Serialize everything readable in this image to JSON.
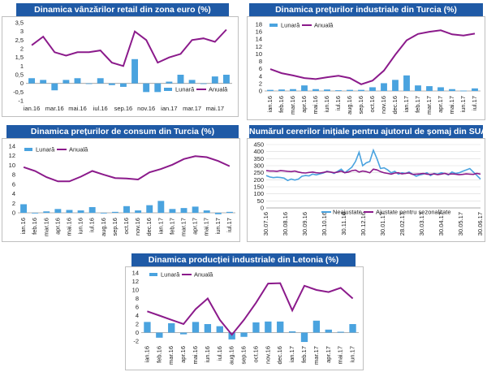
{
  "colors": {
    "bar": "#4aa3df",
    "line": "#8b1a8b",
    "title_bg": "#1f5aa6",
    "grid": "#d9d9d9"
  },
  "chart_data": [
    {
      "type": "bar+line",
      "title": "Dinamica vânzărilor retail din zona euro (%)",
      "ylim": [
        -1,
        3.5
      ],
      "yticks": [
        "3,5",
        "3",
        "2,5",
        "2",
        "1,5",
        "1",
        "0,5",
        "0",
        "-0,5",
        "-1"
      ],
      "tick_values": [
        3.5,
        3,
        2.5,
        2,
        1.5,
        1,
        0.5,
        0,
        -0.5,
        -1
      ],
      "categories": [
        "ian.16",
        "feb.16",
        "mar.16",
        "apr.16",
        "mai.16",
        "iun.16",
        "iul.16",
        "aug.16",
        "sep.16",
        "oct.16",
        "nov.16",
        "dec.16",
        "ian.17",
        "feb.17",
        "mar.17",
        "apr.17",
        "mai.17",
        "iun.17"
      ],
      "xlabels": [
        "ian.16",
        "mar.16",
        "mai.16",
        "iul.16",
        "sep.16",
        "nov.16",
        "ian.17",
        "mar.17",
        "mai.17"
      ],
      "xlabel_index": [
        0,
        2,
        4,
        6,
        8,
        10,
        12,
        14,
        16
      ],
      "rotated": false,
      "legend": [
        "Lunară",
        "Anuală"
      ],
      "series": [
        {
          "name": "Lunară",
          "kind": "bar",
          "values": [
            0.3,
            0.2,
            -0.4,
            0.2,
            0.3,
            0,
            0.3,
            -0.1,
            -0.2,
            1.4,
            -0.5,
            -0.5,
            0.1,
            0.5,
            0.2,
            0,
            0.4,
            0.5
          ]
        },
        {
          "name": "Anuală",
          "kind": "line",
          "values": [
            2.2,
            2.7,
            1.8,
            1.6,
            1.8,
            1.8,
            1.9,
            1.2,
            1,
            3,
            2.5,
            1.2,
            1.5,
            1.7,
            2.5,
            2.6,
            2.4,
            3.1
          ]
        }
      ]
    },
    {
      "type": "bar+line",
      "title": "Dinamica prețurilor industriale din Turcia (%)",
      "ylim": [
        0,
        18
      ],
      "yticks": [
        "18",
        "16",
        "14",
        "12",
        "10",
        "8",
        "6",
        "4",
        "2",
        "0"
      ],
      "tick_values": [
        18,
        16,
        14,
        12,
        10,
        8,
        6,
        4,
        2,
        0
      ],
      "categories": [
        "ian.16",
        "feb.16",
        "mar.16",
        "apr.16",
        "mai.16",
        "iun.16",
        "iul.16",
        "aug.16",
        "sep.16",
        "oct.16",
        "nov.16",
        "dec.16",
        "ian.17",
        "feb.17",
        "mar.17",
        "apr.17",
        "mai.17",
        "iun.17",
        "iul.17"
      ],
      "xlabels": [
        "ian.16",
        "feb.16",
        "mar.16",
        "apr.16",
        "mai.16",
        "iun.16",
        "iul.16",
        "aug.16",
        "sep.16",
        "oct.16",
        "nov.16",
        "dec.16",
        "ian.17",
        "feb.17",
        "mar.17",
        "apr.17",
        "mai.17",
        "iun.17",
        "iul.17"
      ],
      "xlabel_index": [
        0,
        1,
        2,
        3,
        4,
        5,
        6,
        7,
        8,
        9,
        10,
        11,
        12,
        13,
        14,
        15,
        16,
        17,
        18
      ],
      "rotated": true,
      "legend": [
        "Lunară",
        "Anuală"
      ],
      "series": [
        {
          "name": "Lunară",
          "kind": "bar",
          "values": [
            0.3,
            0.4,
            0.5,
            1.5,
            0.5,
            0.4,
            0.2,
            0.3,
            0.3,
            1,
            2.1,
            3,
            4.2,
            1.5,
            1.3,
            1,
            0.5,
            0.1,
            0.7
          ]
        },
        {
          "name": "Anuală",
          "kind": "line",
          "values": [
            5.9,
            4.8,
            4.2,
            3.5,
            3.2,
            3.7,
            4.1,
            3.5,
            1.8,
            2.8,
            5.5,
            9.8,
            13.7,
            15.4,
            16,
            16.4,
            15.3,
            15,
            15.5
          ]
        }
      ]
    },
    {
      "type": "bar+line",
      "title": "Dinamica prețurilor de consum din Turcia (%)",
      "ylim": [
        0,
        14
      ],
      "yticks": [
        "14",
        "12",
        "10",
        "8",
        "6",
        "4",
        "2",
        "0"
      ],
      "tick_values": [
        14,
        12,
        10,
        8,
        6,
        4,
        2,
        0
      ],
      "categories": [
        "ian.16",
        "feb.16",
        "mar.16",
        "apr.16",
        "mai.16",
        "iun.16",
        "iul.16",
        "aug.16",
        "sep.16",
        "oct.16",
        "nov.16",
        "dec.16",
        "ian.17",
        "feb.17",
        "mar.17",
        "apr.17",
        "mai.17",
        "iun.17",
        "iul.17"
      ],
      "xlabels": [
        "ian.16",
        "feb.16",
        "mar.16",
        "apr.16",
        "mai.16",
        "iun.16",
        "iul.16",
        "aug.16",
        "sep.16",
        "oct.16",
        "nov.16",
        "dec.16",
        "ian.17",
        "feb.17",
        "mar.17",
        "apr.17",
        "mai.17",
        "iun.17",
        "iul.17"
      ],
      "xlabel_index": [
        0,
        1,
        2,
        3,
        4,
        5,
        6,
        7,
        8,
        9,
        10,
        11,
        12,
        13,
        14,
        15,
        16,
        17,
        18
      ],
      "rotated": true,
      "legend": [
        "Lunară",
        "Anuală"
      ],
      "series": [
        {
          "name": "Lunară",
          "kind": "bar",
          "values": [
            1.8,
            0,
            0.3,
            0.8,
            0.6,
            0.5,
            1.2,
            0,
            0.2,
            1.4,
            0.5,
            1.6,
            2.5,
            0.8,
            1,
            1.3,
            0.5,
            -0.3,
            0.2
          ]
        },
        {
          "name": "Anuală",
          "kind": "line",
          "values": [
            9.6,
            8.8,
            7.5,
            6.6,
            6.6,
            7.6,
            8.8,
            8,
            7.3,
            7.2,
            7,
            8.5,
            9.2,
            10.1,
            11.3,
            11.9,
            11.7,
            10.9,
            9.8
          ]
        }
      ]
    },
    {
      "type": "line",
      "title": "Numărul cererilor inițiale pentru ajutorul de șomaj din SUA (mii)",
      "ylim": [
        0,
        450
      ],
      "yticks": [
        "450",
        "400",
        "350",
        "300",
        "250",
        "200",
        "150",
        "100",
        "50",
        "0"
      ],
      "tick_values": [
        450,
        400,
        350,
        300,
        250,
        200,
        150,
        100,
        50,
        0
      ],
      "xlabels": [
        "30.07.16",
        "30.08.16",
        "30.09.16",
        "30.10.16",
        "30.11.16",
        "30.12.16",
        "30.01.17",
        "28.02.17",
        "30.03.17",
        "30.04.17",
        "30.05.17",
        "30.06.17"
      ],
      "rotated": true,
      "legend": [
        "Neajustate",
        "Ajustate pentru sezonalitate"
      ],
      "series": [
        {
          "name": "Neajustate",
          "kind": "line",
          "color": "#4aa3df",
          "values": [
            230,
            220,
            215,
            218,
            216,
            212,
            195,
            205,
            198,
            205,
            225,
            230,
            228,
            240,
            235,
            242,
            248,
            260,
            255,
            245,
            260,
            275,
            250,
            270,
            290,
            330,
            395,
            300,
            320,
            330,
            410,
            350,
            280,
            285,
            270,
            250,
            260,
            240,
            250,
            245,
            255,
            240,
            225,
            235,
            240,
            250,
            230,
            245,
            240,
            250,
            245,
            235,
            255,
            245,
            250,
            260,
            270,
            280,
            255,
            230,
            205
          ]
        },
        {
          "name": "Ajustate pentru sezonalitate",
          "kind": "line",
          "color": "#8b1a8b",
          "values": [
            265,
            262,
            262,
            260,
            265,
            263,
            260,
            258,
            262,
            255,
            250,
            248,
            252,
            255,
            250,
            248,
            252,
            258,
            255,
            250,
            255,
            262,
            250,
            255,
            265,
            268,
            255,
            262,
            258,
            250,
            275,
            270,
            258,
            250,
            245,
            240,
            248,
            250,
            242,
            245,
            248,
            238,
            240,
            242,
            245,
            240,
            238,
            242,
            236,
            240,
            245,
            238,
            242,
            240,
            236,
            238,
            242,
            240,
            238,
            245,
            240
          ]
        }
      ]
    },
    {
      "type": "bar+line",
      "title": "Dinamica producției industriale din Letonia (%)",
      "ylim": [
        -2,
        14
      ],
      "yticks": [
        "14",
        "12",
        "10",
        "8",
        "6",
        "4",
        "2",
        "0",
        "-2"
      ],
      "tick_values": [
        14,
        12,
        10,
        8,
        6,
        4,
        2,
        0,
        -2
      ],
      "categories": [
        "ian.16",
        "feb.16",
        "mar.16",
        "apr.16",
        "mai.16",
        "iun.16",
        "iul.16",
        "aug.16",
        "sep.16",
        "oct.16",
        "nov.16",
        "dec.16",
        "ian.17",
        "feb.17",
        "mar.17",
        "apr.17",
        "mai.17",
        "iun.17"
      ],
      "xlabels": [
        "ian.16",
        "feb.16",
        "mar.16",
        "apr.16",
        "mai.16",
        "iun.16",
        "iul.16",
        "aug.16",
        "sep.16",
        "oct.16",
        "nov.16",
        "dec.16",
        "ian.17",
        "feb.17",
        "mar.17",
        "apr.17",
        "mai.17",
        "iun.17"
      ],
      "xlabel_index": [
        0,
        1,
        2,
        3,
        4,
        5,
        6,
        7,
        8,
        9,
        10,
        11,
        12,
        13,
        14,
        15,
        16,
        17
      ],
      "rotated": true,
      "legend": [
        "Lunară",
        "Anuală"
      ],
      "series": [
        {
          "name": "Lunară",
          "kind": "bar",
          "values": [
            2.5,
            -1.2,
            2.2,
            -0.4,
            2.5,
            2,
            1.5,
            -1.6,
            -1,
            2.4,
            2.6,
            2.6,
            0.3,
            -2.2,
            2.8,
            0.7,
            0.2,
            2
          ]
        },
        {
          "name": "Anuală",
          "kind": "line",
          "values": [
            5,
            4,
            3,
            2,
            5.5,
            8,
            3,
            -0.5,
            3,
            7,
            11.5,
            11.6,
            5.2,
            11,
            10,
            9.5,
            10.5,
            8
          ]
        }
      ]
    }
  ]
}
